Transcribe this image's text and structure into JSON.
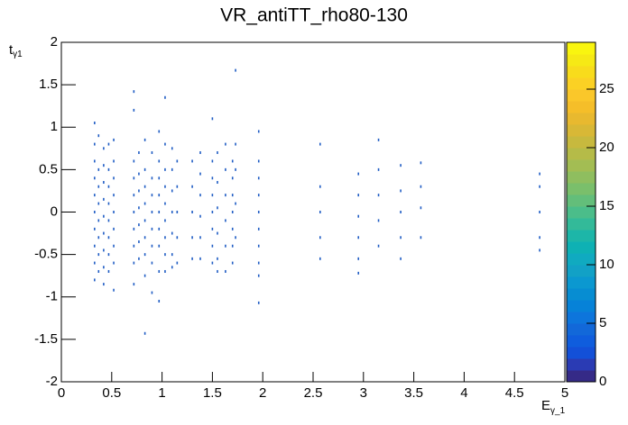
{
  "chart_data": {
    "type": "scatter",
    "title": "VR_antiTT_rho80-130",
    "x_label": {
      "main": "E",
      "sub": "γ_1"
    },
    "y_label": {
      "main": "t",
      "sub": "γ1"
    },
    "color": "#1f5cc4",
    "xlim": [
      0,
      5
    ],
    "xticks": [
      0,
      0.5,
      1,
      1.5,
      2,
      2.5,
      3,
      3.5,
      4,
      4.5,
      5
    ],
    "ylim": [
      -2,
      2
    ],
    "yticks": [
      -2,
      -1.5,
      -1,
      -0.5,
      0,
      0.5,
      1,
      1.5,
      2
    ],
    "zlim": [
      0,
      29
    ],
    "zticks": [
      0,
      5,
      10,
      15,
      20,
      25
    ],
    "palette": [
      "#352a87",
      "#2a3bb4",
      "#1350d8",
      "#0f5ddd",
      "#1268d9",
      "#0d75dc",
      "#0682d8",
      "#078dd2",
      "#0b98d0",
      "#12a1c6",
      "#10aac0",
      "#0eb1b4",
      "#1db6a8",
      "#33ba99",
      "#4bbd8a",
      "#63be7a",
      "#7abf6b",
      "#8fbe5f",
      "#a3bd53",
      "#b5bb48",
      "#c7b93e",
      "#d8b836",
      "#e8b92f",
      "#f5be29",
      "#fac72a",
      "#fbd124",
      "#f8dc1c",
      "#f6e915",
      "#f9f50f"
    ],
    "x": [
      0.33,
      0.33,
      0.33,
      0.33,
      0.33,
      0.33,
      0.33,
      0.33,
      0.33,
      0.33,
      0.37,
      0.37,
      0.37,
      0.37,
      0.37,
      0.37,
      0.37,
      0.37,
      0.42,
      0.42,
      0.42,
      0.42,
      0.42,
      0.42,
      0.42,
      0.42,
      0.42,
      0.47,
      0.47,
      0.47,
      0.47,
      0.47,
      0.47,
      0.47,
      0.47,
      0.52,
      0.52,
      0.52,
      0.52,
      0.52,
      0.52,
      0.52,
      0.52,
      0.52,
      0.72,
      0.72,
      0.72,
      0.72,
      0.72,
      0.72,
      0.72,
      0.72,
      0.72,
      0.72,
      0.77,
      0.77,
      0.77,
      0.77,
      0.77,
      0.77,
      0.77,
      0.83,
      0.83,
      0.83,
      0.83,
      0.83,
      0.83,
      0.83,
      0.83,
      0.83,
      0.9,
      0.9,
      0.9,
      0.9,
      0.9,
      0.9,
      0.9,
      0.9,
      0.97,
      0.97,
      0.97,
      0.97,
      0.97,
      0.97,
      0.97,
      0.97,
      0.97,
      1.03,
      1.03,
      1.03,
      1.03,
      1.03,
      1.03,
      1.03,
      1.03,
      1.03,
      1.1,
      1.1,
      1.1,
      1.1,
      1.1,
      1.1,
      1.1,
      1.15,
      1.15,
      1.15,
      1.15,
      1.15,
      1.3,
      1.3,
      1.3,
      1.3,
      1.3,
      1.38,
      1.38,
      1.38,
      1.38,
      1.38,
      1.38,
      1.5,
      1.5,
      1.5,
      1.5,
      1.5,
      1.5,
      1.5,
      1.5,
      1.55,
      1.55,
      1.55,
      1.55,
      1.55,
      1.55,
      1.63,
      1.63,
      1.63,
      1.63,
      1.63,
      1.63,
      1.7,
      1.7,
      1.7,
      1.7,
      1.7,
      1.7,
      1.7,
      1.73,
      1.73,
      1.73,
      1.73,
      1.73,
      1.96,
      1.96,
      1.96,
      1.96,
      1.96,
      1.96,
      1.96,
      1.96,
      1.96,
      1.96,
      2.57,
      2.57,
      2.57,
      2.57,
      2.57,
      2.95,
      2.95,
      2.95,
      2.95,
      2.95,
      2.95,
      3.15,
      3.15,
      3.15,
      3.15,
      3.15,
      3.37,
      3.37,
      3.37,
      3.37,
      3.37,
      3.57,
      3.57,
      3.57,
      3.57,
      4.75,
      4.75,
      4.75,
      4.75,
      4.75
    ],
    "y": [
      1.05,
      0.8,
      0.6,
      0.4,
      0.2,
      0,
      -0.2,
      -0.4,
      -0.6,
      -0.8,
      0.9,
      0.5,
      0.3,
      0.1,
      -0.1,
      -0.3,
      -0.5,
      -0.7,
      0.75,
      0.55,
      0.35,
      0.15,
      -0.05,
      -0.25,
      -0.45,
      -0.65,
      -0.85,
      0.8,
      0.5,
      0.3,
      0.1,
      -0.1,
      -0.3,
      -0.5,
      -0.7,
      0.85,
      0.6,
      0.4,
      0.2,
      0,
      -0.2,
      -0.4,
      -0.6,
      -0.92,
      1.42,
      1.2,
      0.6,
      0.4,
      0.2,
      0,
      -0.2,
      -0.4,
      -0.6,
      -0.85,
      0.7,
      0.45,
      0.25,
      0.05,
      -0.15,
      -0.35,
      -0.55,
      0.85,
      0.5,
      0.3,
      0.1,
      -0.1,
      -0.3,
      -0.5,
      -0.75,
      -1.43,
      0.7,
      0.4,
      0.2,
      0,
      -0.2,
      -0.4,
      -0.6,
      -0.95,
      0.95,
      0.6,
      0.4,
      0.2,
      0,
      -0.2,
      -0.4,
      -0.7,
      -1.05,
      1.35,
      0.8,
      0.5,
      0.3,
      0.1,
      -0.1,
      -0.3,
      -0.5,
      -0.7,
      0.75,
      0.5,
      0.25,
      0,
      -0.25,
      -0.5,
      -0.65,
      0.6,
      0.3,
      0,
      -0.3,
      -0.6,
      0.6,
      0.3,
      0,
      -0.3,
      -0.55,
      0.7,
      0.45,
      0.2,
      -0.05,
      -0.3,
      -0.55,
      1.1,
      0.6,
      0.4,
      0.2,
      0,
      -0.2,
      -0.4,
      -0.6,
      0.7,
      0.35,
      0.05,
      -0.25,
      -0.55,
      -0.7,
      0.8,
      0.5,
      0.2,
      -0.1,
      -0.4,
      -0.7,
      0.6,
      0.4,
      0.2,
      0,
      -0.2,
      -0.4,
      -0.6,
      1.67,
      0.8,
      0.5,
      0.1,
      -0.3,
      0.95,
      0.6,
      0.4,
      0.2,
      0,
      -0.2,
      -0.4,
      -0.6,
      -0.75,
      -1.07,
      0.8,
      0.3,
      0,
      -0.3,
      -0.55,
      0.45,
      0.2,
      -0.05,
      -0.3,
      -0.55,
      -0.72,
      0.85,
      0.5,
      0.2,
      -0.1,
      -0.4,
      0.55,
      0.25,
      0,
      -0.3,
      -0.55,
      0.58,
      0.3,
      0.05,
      -0.3,
      0.45,
      0.3,
      0,
      -0.3,
      -0.45
    ]
  }
}
